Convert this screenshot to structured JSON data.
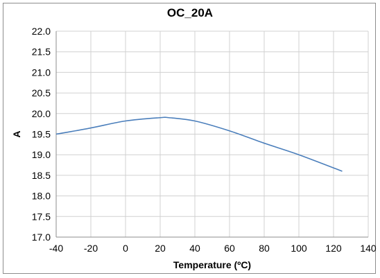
{
  "chart_data": {
    "type": "line",
    "title": "OC_20A",
    "xlabel": "Temperature (ºC)",
    "ylabel": "A",
    "xlim": [
      -40,
      140
    ],
    "ylim": [
      17.0,
      22.0
    ],
    "x_ticks": [
      "-40",
      "-20",
      "0",
      "20",
      "40",
      "60",
      "80",
      "100",
      "120",
      "140"
    ],
    "y_ticks": [
      "17.0",
      "17.5",
      "18.0",
      "18.5",
      "19.0",
      "19.5",
      "20.0",
      "20.5",
      "21.0",
      "21.5",
      "22.0"
    ],
    "grid": true,
    "legend": "none",
    "series": [
      {
        "color": "#4a7ebb",
        "x": [
          -40,
          -20,
          0,
          20,
          25,
          40,
          60,
          80,
          100,
          125
        ],
        "y": [
          19.5,
          19.65,
          19.82,
          19.9,
          19.9,
          19.82,
          19.58,
          19.28,
          19.0,
          18.6
        ]
      }
    ]
  }
}
